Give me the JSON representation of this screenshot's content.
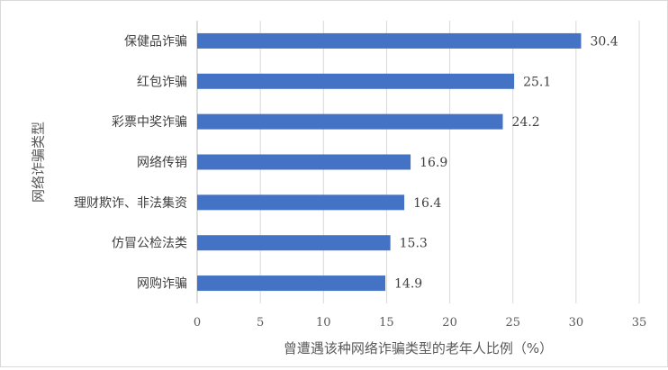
{
  "chart_data": {
    "type": "bar",
    "orientation": "horizontal",
    "categories": [
      "保健品诈骗",
      "红包诈骗",
      "彩票中奖诈骗",
      "网络传销",
      "理财欺诈、非法集资",
      "仿冒公检法类",
      "网购诈骗"
    ],
    "values": [
      30.4,
      25.1,
      24.2,
      16.9,
      16.4,
      15.3,
      14.9
    ],
    "value_labels": [
      "30.4",
      "25.1",
      "24.2",
      "16.9",
      "16.4",
      "15.3",
      "14.9"
    ],
    "xlabel": "曾遭遇该种网络诈骗类型的老年人比例（%）",
    "ylabel": "网络诈骗类型",
    "xlim": [
      0,
      35
    ],
    "xticks": [
      0,
      5,
      10,
      15,
      20,
      25,
      30,
      35
    ],
    "grid": true,
    "bar_color": "#4472c4",
    "gridline_color": "#d9d9d9",
    "legend": "none"
  }
}
